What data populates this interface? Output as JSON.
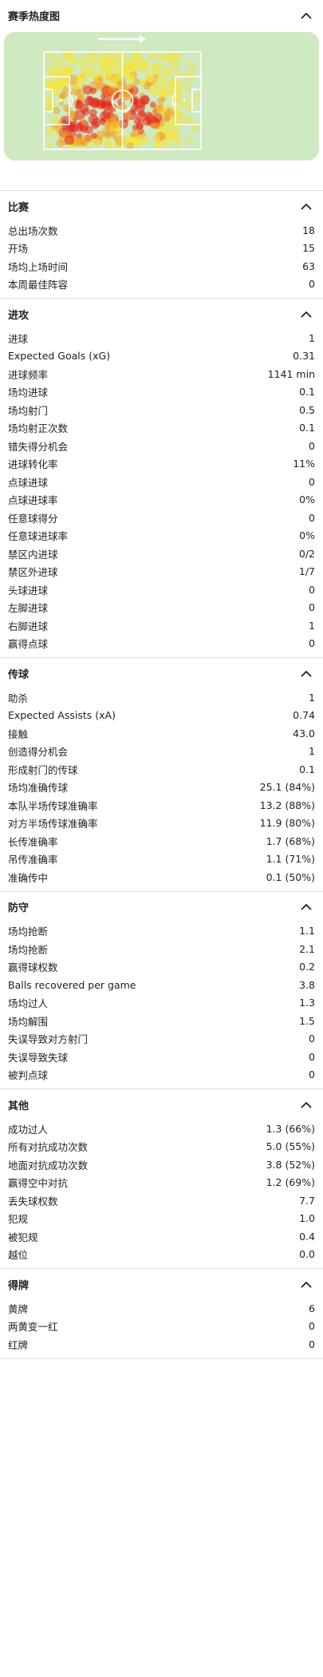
{
  "heatmap": {
    "title": "赛季热度图",
    "direction_icon": "arrow-right-icon",
    "colors": {
      "pitch": "#cfe9c1",
      "line": "#ffffff",
      "hot": "#e8261b",
      "warm": "#f4a020",
      "cool": "#f4e63c"
    }
  },
  "sections": [
    {
      "key": "match",
      "title": "比赛",
      "rows": [
        {
          "label": "总出场次数",
          "value": "18"
        },
        {
          "label": "开场",
          "value": "15"
        },
        {
          "label": "场均上场时间",
          "value": "63"
        },
        {
          "label": "本周最佳阵容",
          "value": "0"
        }
      ]
    },
    {
      "key": "attack",
      "title": "进攻",
      "rows": [
        {
          "label": "进球",
          "value": "1"
        },
        {
          "label": "Expected Goals (xG)",
          "value": "0.31"
        },
        {
          "label": "进球频率",
          "value": "1141 min"
        },
        {
          "label": "场均进球",
          "value": "0.1"
        },
        {
          "label": "场均射门",
          "value": "0.5"
        },
        {
          "label": "场均射正次数",
          "value": "0.1"
        },
        {
          "label": "错失得分机会",
          "value": "0"
        },
        {
          "label": "进球转化率",
          "value": "11%"
        },
        {
          "label": "点球进球",
          "value": "0"
        },
        {
          "label": "点球进球率",
          "value": "0%"
        },
        {
          "label": "任意球得分",
          "value": "0"
        },
        {
          "label": "任意球进球率",
          "value": "0%"
        },
        {
          "label": "禁区内进球",
          "value": "0/2"
        },
        {
          "label": "禁区外进球",
          "value": "1/7"
        },
        {
          "label": "头球进球",
          "value": "0"
        },
        {
          "label": "左脚进球",
          "value": "0"
        },
        {
          "label": "右脚进球",
          "value": "1"
        },
        {
          "label": "赢得点球",
          "value": "0"
        }
      ]
    },
    {
      "key": "passing",
      "title": "传球",
      "rows": [
        {
          "label": "助杀",
          "value": "1"
        },
        {
          "label": "Expected Assists (xA)",
          "value": "0.74"
        },
        {
          "label": "接触",
          "value": "43.0"
        },
        {
          "label": "创造得分机会",
          "value": "1"
        },
        {
          "label": "形成射门的传球",
          "value": "0.1"
        },
        {
          "label": "场均准确传球",
          "value": "25.1 (84%)"
        },
        {
          "label": "本队半场传球准确率",
          "value": "13.2 (88%)"
        },
        {
          "label": "对方半场传球准确率",
          "value": "11.9 (80%)"
        },
        {
          "label": "长传准确率",
          "value": "1.7 (68%)"
        },
        {
          "label": "吊传准确率",
          "value": "1.1 (71%)"
        },
        {
          "label": "准确传中",
          "value": "0.1 (50%)"
        }
      ]
    },
    {
      "key": "defense",
      "title": "防守",
      "rows": [
        {
          "label": "场均抢断",
          "value": "1.1"
        },
        {
          "label": "场均抢断",
          "value": "2.1"
        },
        {
          "label": "赢得球权数",
          "value": "0.2"
        },
        {
          "label": "Balls recovered per game",
          "value": "3.8"
        },
        {
          "label": "场均过人",
          "value": "1.3"
        },
        {
          "label": "场均解围",
          "value": "1.5"
        },
        {
          "label": "失误导致对方射门",
          "value": "0"
        },
        {
          "label": "失误导致失球",
          "value": "0"
        },
        {
          "label": "被判点球",
          "value": "0"
        }
      ]
    },
    {
      "key": "other",
      "title": "其他",
      "rows": [
        {
          "label": "成功过人",
          "value": "1.3 (66%)"
        },
        {
          "label": "所有对抗成功次数",
          "value": "5.0 (55%)"
        },
        {
          "label": "地面对抗成功次数",
          "value": "3.8 (52%)"
        },
        {
          "label": "赢得空中对抗",
          "value": "1.2 (69%)"
        },
        {
          "label": "丢失球权数",
          "value": "7.7"
        },
        {
          "label": "犯规",
          "value": "1.0"
        },
        {
          "label": "被犯规",
          "value": "0.4"
        },
        {
          "label": "越位",
          "value": "0.0"
        }
      ]
    },
    {
      "key": "cards",
      "title": "得牌",
      "rows": [
        {
          "label": "黄牌",
          "value": "6"
        },
        {
          "label": "两黄变一红",
          "value": "0"
        },
        {
          "label": "红牌",
          "value": "0"
        }
      ]
    }
  ]
}
